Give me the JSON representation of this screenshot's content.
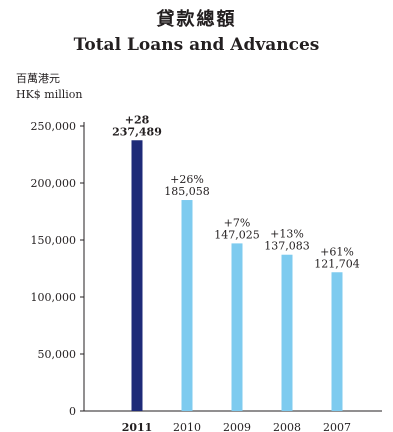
{
  "chart_data": {
    "type": "bar",
    "title": "貸款總額",
    "subtitle": "Total Loans and Advances",
    "ylabel_cn": "百萬港元",
    "ylabel": "HK$ million",
    "xlabel": "",
    "categories": [
      "2011",
      "2010",
      "2009",
      "2008",
      "2007"
    ],
    "values": [
      237489,
      185058,
      147025,
      137083,
      121704
    ],
    "value_labels": [
      "237,489",
      "185,058",
      "147,025",
      "137,083",
      "121,704"
    ],
    "growth_labels": [
      "+28",
      "+26%",
      "+7%",
      "+13%",
      "+61%"
    ],
    "highlight_category": "2011",
    "ylim": [
      0,
      250000
    ],
    "yticks": [
      0,
      50000,
      100000,
      150000,
      200000,
      250000
    ],
    "ytick_labels": [
      "0",
      "50,000",
      "100,000",
      "150,000",
      "200,000",
      "250,000"
    ],
    "grid": false,
    "legend": "none",
    "colors": {
      "highlight": "#1e2a78",
      "bar": "#7ecbef",
      "axis": "#231f20"
    }
  }
}
